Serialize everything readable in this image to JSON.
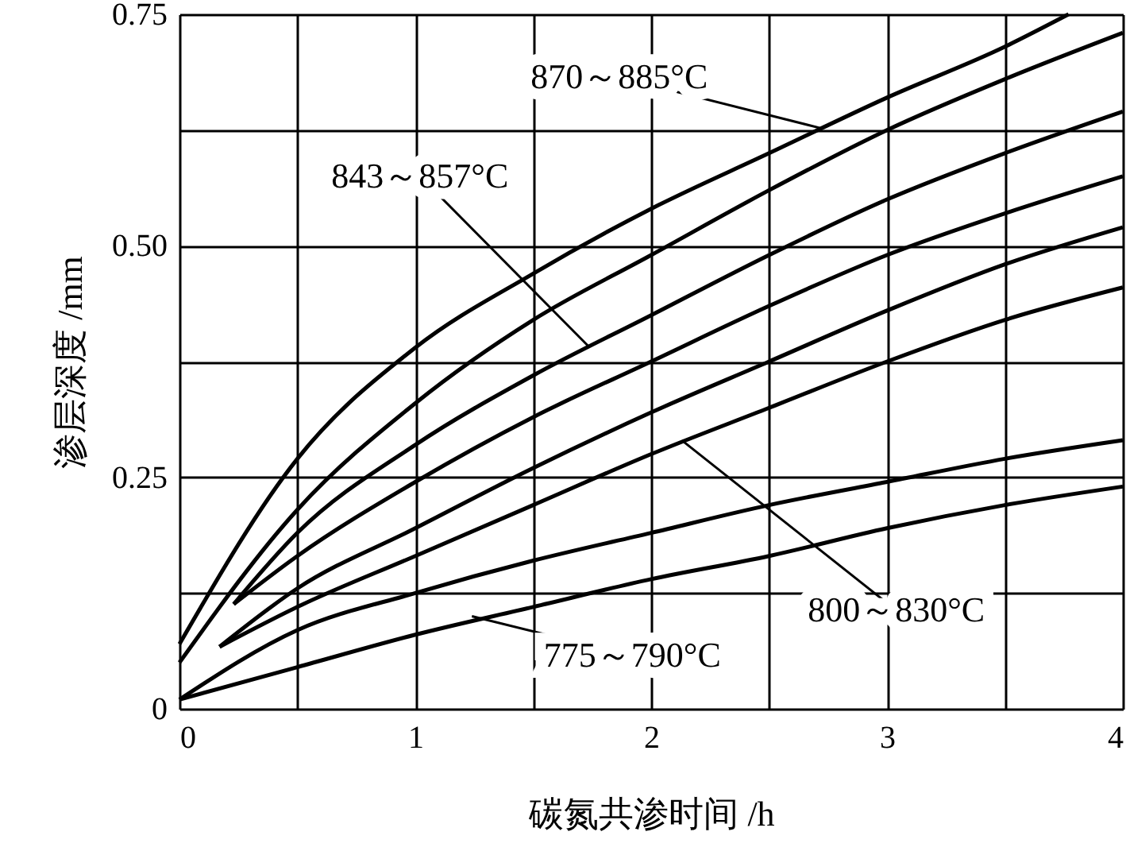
{
  "chart_data": {
    "type": "line",
    "xlabel": "碳氮共渗时间 /h",
    "ylabel": "渗层深度 /mm",
    "xlim": [
      0,
      4
    ],
    "ylim": [
      0,
      0.75
    ],
    "xticks": [
      0,
      {
        "value": 0.5,
        "label": null
      },
      1,
      {
        "value": 1.5,
        "label": null
      },
      2,
      {
        "value": 2.5,
        "label": null
      },
      3,
      {
        "value": 3.5,
        "label": null
      },
      4
    ],
    "yticks": [
      0,
      {
        "value": 0.125,
        "label": null
      },
      0.25,
      {
        "value": 0.375,
        "label": null
      },
      {
        "value": 0.5,
        "label": "0.50"
      },
      {
        "value": 0.625,
        "label": null
      },
      0.75
    ],
    "grid": true,
    "marker": "none",
    "line_style": "solid",
    "series": [
      {
        "color": "#000000",
        "x": [
          0,
          0.5,
          1,
          1.5,
          2,
          2.5,
          3,
          3.5,
          3.77
        ],
        "values": [
          0.07,
          0.27,
          0.39,
          0.47,
          0.54,
          0.6,
          0.66,
          0.715,
          0.75
        ]
      },
      {
        "color": "#000000",
        "x": [
          0,
          0.5,
          1,
          1.5,
          2,
          2.5,
          3,
          3.5,
          4
        ],
        "values": [
          0.05,
          0.215,
          0.33,
          0.42,
          0.49,
          0.56,
          0.625,
          0.68,
          0.73
        ]
      },
      {
        "color": "#000000",
        "x": [
          0.23,
          0.5,
          1,
          1.5,
          2,
          2.5,
          3,
          3.5,
          4
        ],
        "values": [
          0.113,
          0.19,
          0.285,
          0.36,
          0.425,
          0.49,
          0.55,
          0.6,
          0.645
        ]
      },
      {
        "color": "#000000",
        "x": [
          0.23,
          0.5,
          1,
          1.5,
          2,
          2.5,
          3,
          3.5,
          4
        ],
        "values": [
          0.113,
          0.165,
          0.245,
          0.315,
          0.375,
          0.435,
          0.49,
          0.535,
          0.575
        ]
      },
      {
        "color": "#000000",
        "x": [
          0.17,
          0.5,
          1,
          1.5,
          2,
          2.5,
          3,
          3.5,
          4
        ],
        "values": [
          0.067,
          0.13,
          0.195,
          0.26,
          0.32,
          0.375,
          0.43,
          0.48,
          0.52
        ]
      },
      {
        "color": "#000000",
        "x": [
          0.17,
          0.5,
          1,
          1.5,
          2,
          2.5,
          3,
          3.5,
          4
        ],
        "values": [
          0.067,
          0.11,
          0.165,
          0.22,
          0.275,
          0.325,
          0.375,
          0.42,
          0.455
        ]
      },
      {
        "color": "#000000",
        "x": [
          0,
          0.5,
          1,
          1.5,
          2,
          2.5,
          3,
          3.5,
          4
        ],
        "values": [
          0.01,
          0.085,
          0.125,
          0.16,
          0.19,
          0.22,
          0.245,
          0.27,
          0.29
        ]
      },
      {
        "color": "#000000",
        "x": [
          0,
          0.5,
          1,
          1.5,
          2,
          2.5,
          3,
          3.5,
          4
        ],
        "values": [
          0.01,
          0.045,
          0.08,
          0.11,
          0.14,
          0.165,
          0.195,
          0.22,
          0.24
        ]
      }
    ],
    "annotations": [
      {
        "text": "870～885°C",
        "x": 2.72,
        "y": 0.627
      },
      {
        "text": "843～857°C",
        "x": 1.74,
        "y": 0.39
      },
      {
        "text": "800～830°C",
        "x": 2.13,
        "y": 0.29
      },
      {
        "text": "775～790°C",
        "x": 1.24,
        "y": 0.1
      }
    ]
  }
}
